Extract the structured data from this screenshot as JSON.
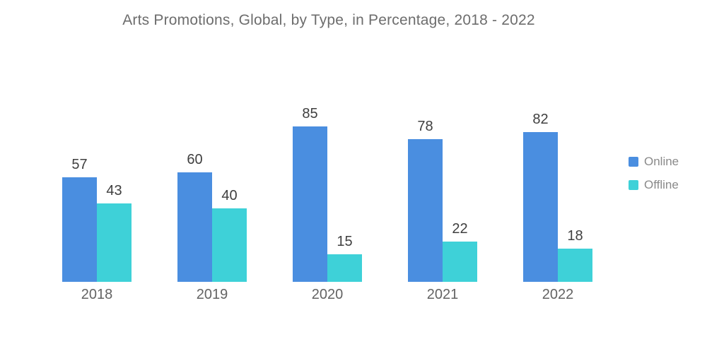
{
  "title": "Arts Promotions, Global, by Type, in Percentage, 2018 - 2022",
  "legend": {
    "items": [
      {
        "label": "Online",
        "color": "#4a8ee0"
      },
      {
        "label": "Offline",
        "color": "#3ed1d8"
      }
    ]
  },
  "chart_data": {
    "type": "bar",
    "title": "Arts Promotions, Global, by Type, in Percentage, 2018 - 2022",
    "categories": [
      "2018",
      "2019",
      "2020",
      "2021",
      "2022"
    ],
    "series": [
      {
        "name": "Online",
        "color": "#4a8ee0",
        "values": [
          57,
          60,
          85,
          78,
          82
        ]
      },
      {
        "name": "Offline",
        "color": "#3ed1d8",
        "values": [
          43,
          40,
          15,
          22,
          18
        ]
      }
    ],
    "xlabel": "",
    "ylabel": "",
    "ylim": [
      0,
      100
    ],
    "grid": false,
    "value_labels": true,
    "legend_position": "right"
  },
  "text_colors": {
    "title": "#6d6d6d",
    "value_label": "#3f3f3f",
    "axis_label": "#636363",
    "legend_label": "#8a8a8a"
  }
}
